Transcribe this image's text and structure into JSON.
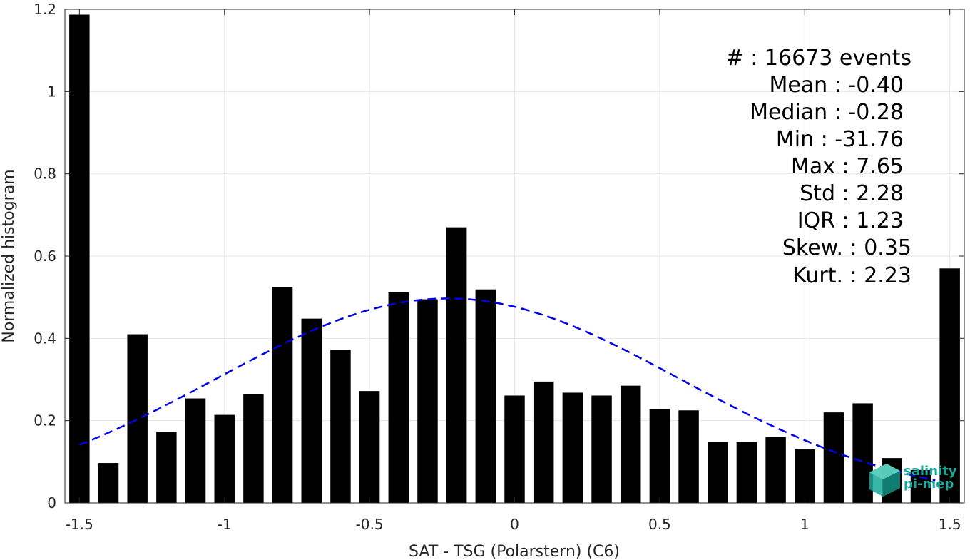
{
  "chart_data": {
    "type": "bar",
    "xlabel": "SAT - TSG (Polarstern) (C6)",
    "ylabel": "Normalized histogram",
    "xlim": [
      -1.55,
      1.55
    ],
    "ylim": [
      0,
      1.2
    ],
    "x_ticks": [
      -1.5,
      -1,
      -0.5,
      0,
      0.5,
      1,
      1.5
    ],
    "x_tick_labels": [
      "-1.5",
      "-1",
      "-0.5",
      "0",
      "0.5",
      "1",
      "1.5"
    ],
    "y_ticks": [
      0,
      0.2,
      0.4,
      0.6,
      0.8,
      1,
      1.2
    ],
    "y_tick_labels": [
      "0",
      "0.2",
      "0.4",
      "0.6",
      "0.8",
      "1",
      "1.2"
    ],
    "grid": true,
    "bar_color": "#000000",
    "bar_width": 0.07,
    "x": [
      -1.5,
      -1.4,
      -1.3,
      -1.2,
      -1.1,
      -1.0,
      -0.9,
      -0.8,
      -0.7,
      -0.6,
      -0.5,
      -0.4,
      -0.3,
      -0.2,
      -0.1,
      0.0,
      0.1,
      0.2,
      0.3,
      0.4,
      0.5,
      0.6,
      0.7,
      0.8,
      0.9,
      1.0,
      1.1,
      1.2,
      1.3,
      1.4,
      1.5
    ],
    "values": [
      1.187,
      0.097,
      0.41,
      0.173,
      0.254,
      0.214,
      0.265,
      0.525,
      0.448,
      0.372,
      0.272,
      0.512,
      0.495,
      0.67,
      0.519,
      0.261,
      0.295,
      0.268,
      0.261,
      0.285,
      0.228,
      0.225,
      0.148,
      0.148,
      0.16,
      0.13,
      0.22,
      0.242,
      0.109,
      0.08,
      0.57
    ],
    "fit_curve": {
      "type": "gaussian",
      "style": "dashed",
      "color": "#0000ee",
      "mean": -0.23,
      "std": 0.8,
      "peak": 0.497,
      "x_range": [
        -1.5,
        1.45
      ]
    }
  },
  "stats": {
    "events": "#  : 16673 events",
    "mean": "Mean : -0.40",
    "median": "Median : -0.28",
    "min": "Min : -31.76",
    "max": "Max : 7.65",
    "std": "Std : 2.28",
    "iqr": "IQR : 1.23",
    "skew": "Skew. : 0.35",
    "kurt": "Kurt. : 2.23"
  },
  "logo": {
    "line1": "salinity",
    "line2": "pi-mep",
    "color": "#1aa89a"
  }
}
